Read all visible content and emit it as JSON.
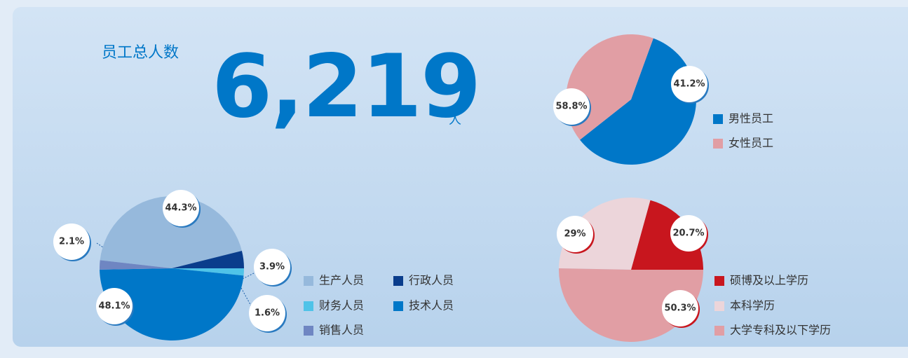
{
  "headline": {
    "title": "员工总人数",
    "value": "6,219",
    "unit": "人"
  },
  "chart_data": [
    {
      "type": "pie",
      "categories": [
        "男性员工",
        "女性员工"
      ],
      "values": [
        58.8,
        41.2
      ],
      "value_labels": [
        "58.8%",
        "41.2%"
      ],
      "colors": [
        "#0077c8",
        "#e19ea4"
      ]
    },
    {
      "type": "pie",
      "categories": [
        "生产人员",
        "行政人员",
        "财务人员",
        "技术人员",
        "销售人员"
      ],
      "values": [
        44.3,
        3.9,
        1.6,
        48.1,
        2.1
      ],
      "value_labels": [
        "44.3%",
        "3.9%",
        "1.6%",
        "48.1%",
        "2.1%"
      ],
      "colors": [
        "#96b9dc",
        "#0a3d8c",
        "#4fc3e8",
        "#0077c8",
        "#6f86c2"
      ]
    },
    {
      "type": "pie",
      "categories": [
        "硕博及以上学历",
        "本科学历",
        "大学专科及以下学历"
      ],
      "values": [
        20.7,
        29,
        50.3
      ],
      "value_labels": [
        "20.7%",
        "29%",
        "50.3%"
      ],
      "colors": [
        "#c8161e",
        "#ecd5da",
        "#e19ea4"
      ]
    }
  ]
}
